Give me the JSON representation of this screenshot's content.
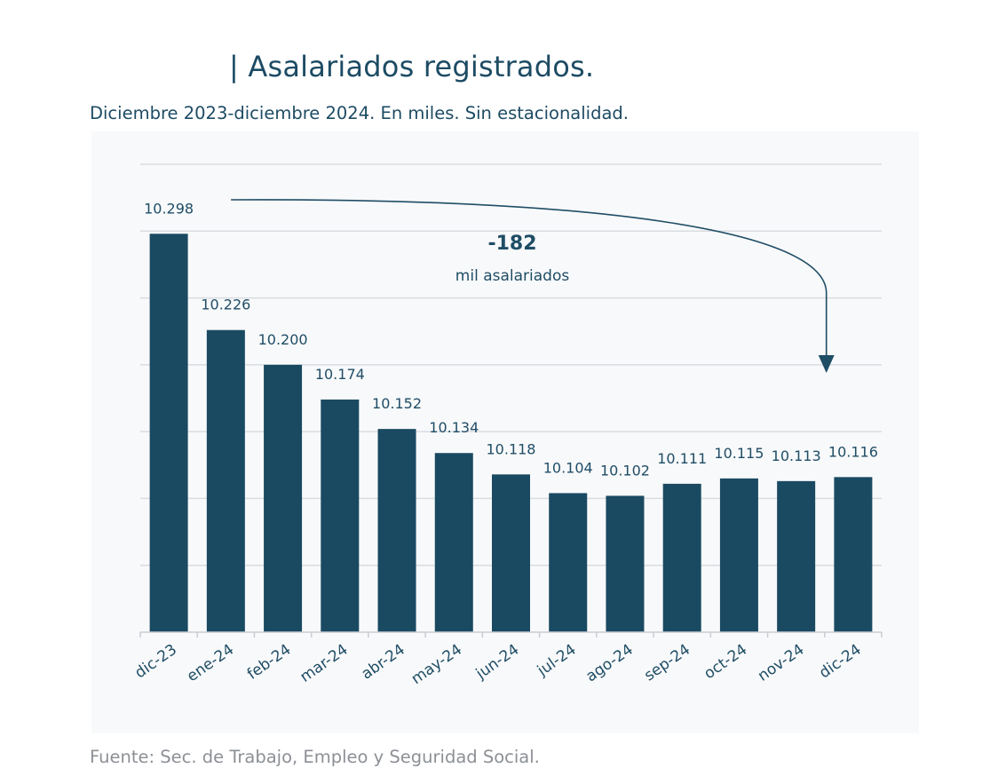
{
  "header": {
    "title": "| Asalariados registrados.",
    "subtitle": "Diciembre 2023-diciembre 2024. En miles. Sin estacionalidad."
  },
  "footer": {
    "source": "Fuente: Sec. de Trabajo, Empleo y Seguridad Social."
  },
  "colors": {
    "bar": "#1a4a62",
    "text": "#1d4b64",
    "grid": "#d9dde1",
    "source_text": "#8c9095",
    "panel": "#f8f9fa"
  },
  "chart_data": {
    "type": "bar",
    "title": "| Asalariados registrados.",
    "subtitle": "Diciembre 2023-diciembre 2024. En miles. Sin estacionalidad.",
    "categories": [
      "dic-23",
      "ene-24",
      "feb-24",
      "mar-24",
      "abr-24",
      "may-24",
      "jun-24",
      "jul-24",
      "ago-24",
      "sep-24",
      "oct-24",
      "nov-24",
      "dic-24"
    ],
    "values": [
      10298,
      10226,
      10200,
      10174,
      10152,
      10134,
      10118,
      10104,
      10102,
      10111,
      10115,
      10113,
      10116
    ],
    "value_labels": [
      "10.298",
      "10.226",
      "10.200",
      "10.174",
      "10.152",
      "10.134",
      "10.118",
      "10.104",
      "10.102",
      "10.111",
      "10.115",
      "10.113",
      "10.116"
    ],
    "xlabel": "",
    "ylabel": "",
    "ylim": [
      10000,
      10350
    ],
    "grid": true,
    "legend": "none",
    "annotation": {
      "value": "-182",
      "text": "mil asalariados",
      "from_category": "dic-23",
      "to_category": "dic-24"
    }
  }
}
